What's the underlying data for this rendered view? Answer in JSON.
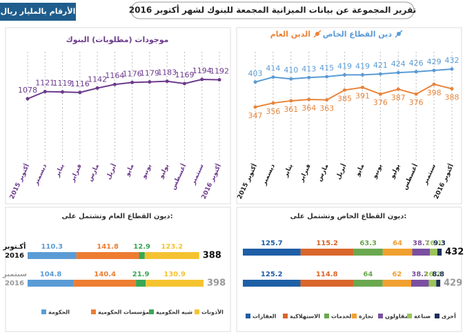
{
  "header": {
    "title": "تقرير المجموعة عن بيانات الميزانية المجمعة للبنوك لشهر أكتوبر 2016",
    "unit_note": "الأرقام بالمليار ريال"
  },
  "chart_data": [
    {
      "type": "line",
      "title": "موجودات (مطلوبات) البنوك",
      "color": "#6b3a8c",
      "categories": [
        "أكتوبر 2015",
        "ديسمبر",
        "يناير",
        "فبراير",
        "مارس",
        "أبريل",
        "مايو",
        "يونيو",
        "يوليو",
        "أغسطس",
        "سبتمبر",
        "أكتوبر 2016"
      ],
      "values": [
        1078,
        1121,
        1119,
        1116,
        1142,
        1164,
        1176,
        1179,
        1183,
        1169,
        1194,
        1192
      ]
    },
    {
      "type": "line",
      "categories": [
        "أكتوبر 2015",
        "ديسمبر",
        "يناير",
        "فبراير",
        "مارس",
        "أبريل",
        "مايو",
        "يونيو",
        "يوليو",
        "أغسطس",
        "سبتمبر",
        "أكتوبر 2016"
      ],
      "series": [
        {
          "name": "دين القطاع الخاص",
          "color": "#5b9bd5",
          "values": [
            403,
            414,
            410,
            413,
            415,
            419,
            419,
            421,
            424,
            426,
            429,
            432
          ]
        },
        {
          "name": "الدين العام",
          "color": "#e8843a",
          "values": [
            347,
            356,
            361,
            364,
            363,
            385,
            391,
            376,
            387,
            376,
            398,
            388
          ]
        }
      ]
    },
    {
      "type": "stacked-bar",
      "title": "ديون القطاع العام وتشتمل على:",
      "categories": [
        "أكـتوبر\n2016",
        "سبتمبر\n2016"
      ],
      "totals": [
        388,
        398
      ],
      "series": [
        {
          "name": "الحكومة",
          "color": "#5b9bd5",
          "values": [
            110.3,
            104.8
          ]
        },
        {
          "name": "المؤسسات الحكومية",
          "color": "#ed7d31",
          "values": [
            141.8,
            140.4
          ]
        },
        {
          "name": "شبه الحكومية",
          "color": "#3aa655",
          "values": [
            12.9,
            21.9
          ]
        },
        {
          "name": "الأذونات",
          "color": "#f5c330",
          "values": [
            123.2,
            130.9
          ]
        }
      ]
    },
    {
      "type": "stacked-bar",
      "title": "ديون القطاع الخاص وتشتمل على:",
      "totals": [
        432,
        429
      ],
      "series": [
        {
          "name": "العقارات",
          "color": "#1f5fa6",
          "values": [
            125.7,
            125.2
          ]
        },
        {
          "name": "الاستهلاكية",
          "color": "#d9662b",
          "values": [
            115.2,
            114.8
          ]
        },
        {
          "name": "الخدمات",
          "color": "#6aa84f",
          "values": [
            63.3,
            64
          ]
        },
        {
          "name": "تجارة",
          "color": "#f0a030",
          "values": [
            64,
            62
          ]
        },
        {
          "name": "المقاولون",
          "color": "#7b4fa0",
          "values": [
            38.7,
            38.2
          ]
        },
        {
          "name": "صناعة",
          "color": "#9bc45a",
          "values": [
            16.1,
            16.2
          ]
        },
        {
          "name": "أخرى",
          "color": "#1c2e5a",
          "values": [
            9.3,
            8.8
          ]
        }
      ]
    }
  ]
}
